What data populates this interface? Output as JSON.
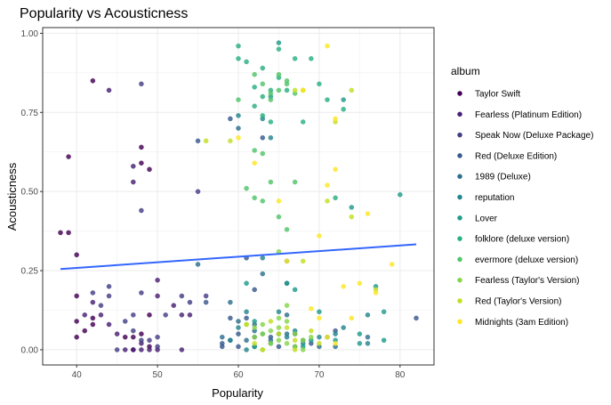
{
  "chart_data": {
    "type": "scatter",
    "title": "Popularity vs Acousticness",
    "xlabel": "Popularity",
    "ylabel": "Acousticness",
    "xlim": [
      35.8,
      84.2
    ],
    "ylim": [
      -0.048,
      1.018
    ],
    "x_ticks": [
      40,
      50,
      60,
      70,
      80
    ],
    "y_ticks": [
      0.0,
      0.25,
      0.5,
      0.75,
      1.0
    ],
    "y_tick_labels": [
      "0.00",
      "0.25",
      "0.50",
      "0.75",
      "1.00"
    ],
    "grid": true,
    "legend": {
      "title": "album",
      "position": "right"
    },
    "trend_line": {
      "x": [
        38,
        82
      ],
      "y": [
        0.255,
        0.333
      ],
      "color": "#3366ff"
    },
    "series": [
      {
        "name": "Taylor Swift",
        "color": "#440154",
        "points": [
          [
            38,
            0.37
          ],
          [
            39,
            0.37
          ],
          [
            39,
            0.61
          ],
          [
            40,
            0.3
          ],
          [
            40,
            0.17
          ],
          [
            40,
            0.09
          ],
          [
            40,
            0.04
          ],
          [
            41,
            0.06
          ],
          [
            42,
            0.08
          ],
          [
            42,
            0.1
          ],
          [
            42,
            0.85
          ],
          [
            46,
            0.04
          ],
          [
            47,
            0.0
          ],
          [
            47,
            0.04
          ],
          [
            48,
            0.05
          ],
          [
            48,
            0.59
          ],
          [
            48,
            0.64
          ],
          [
            49,
            0.01
          ],
          [
            49,
            0.11
          ],
          [
            49,
            0.57
          ]
        ]
      },
      {
        "name": "Fearless (Platinum Edition)",
        "color": "#482173",
        "points": [
          [
            41,
            0.11
          ],
          [
            42,
            0.15
          ],
          [
            43,
            0.11
          ],
          [
            44,
            0.08
          ],
          [
            44,
            0.82
          ],
          [
            45,
            0.05
          ],
          [
            46,
            0.0
          ],
          [
            47,
            0.0
          ],
          [
            47,
            0.53
          ],
          [
            47,
            0.58
          ],
          [
            48,
            0.02
          ],
          [
            48,
            0.0
          ],
          [
            49,
            0.0
          ],
          [
            50,
            0.0
          ],
          [
            50,
            0.22
          ],
          [
            50,
            0.17
          ],
          [
            53,
            0.11
          ],
          [
            52,
            0.14
          ],
          [
            53,
            0.0
          ],
          [
            54,
            0.11
          ]
        ]
      },
      {
        "name": "Speak Now (Deluxe Package)",
        "color": "#433e85",
        "points": [
          [
            42,
            0.18
          ],
          [
            43,
            0.14
          ],
          [
            44,
            0.2
          ],
          [
            44,
            0.17
          ],
          [
            45,
            0.0
          ],
          [
            46,
            0.09
          ],
          [
            47,
            0.11
          ],
          [
            47,
            0.06
          ],
          [
            48,
            0.18
          ],
          [
            48,
            0.44
          ],
          [
            48,
            0.84
          ],
          [
            48,
            0.03
          ],
          [
            49,
            0.03
          ],
          [
            50,
            0.04
          ],
          [
            50,
            0.01
          ],
          [
            51,
            0.11
          ],
          [
            53,
            0.17
          ],
          [
            54,
            0.15
          ],
          [
            55,
            0.5
          ],
          [
            56,
            0.17
          ]
        ]
      },
      {
        "name": "Red (Deluxe Edition)",
        "color": "#38598c",
        "points": [
          [
            55,
            0.66
          ],
          [
            56,
            0.15
          ],
          [
            58,
            0.02
          ],
          [
            58,
            0.01
          ],
          [
            59,
            0.73
          ],
          [
            59,
            0.1
          ],
          [
            60,
            0.01
          ],
          [
            60,
            0.05
          ],
          [
            61,
            0.29
          ],
          [
            61,
            0.1
          ],
          [
            62,
            0.19
          ],
          [
            62,
            0.04
          ],
          [
            63,
            0.67
          ],
          [
            64,
            0.04
          ],
          [
            65,
            0.01
          ],
          [
            66,
            0.21
          ],
          [
            67,
            0.05
          ],
          [
            69,
            0.02
          ],
          [
            72,
            0.06
          ],
          [
            82,
            0.1
          ]
        ]
      },
      {
        "name": "1989 (Deluxe)",
        "color": "#2d708e",
        "points": [
          [
            55,
            0.27
          ],
          [
            58,
            0.04
          ],
          [
            59,
            0.03
          ],
          [
            59,
            0.15
          ],
          [
            60,
            0.7
          ],
          [
            60,
            0.09
          ],
          [
            61,
            0.03
          ],
          [
            62,
            0.06
          ],
          [
            62,
            0.08
          ],
          [
            63,
            0.24
          ],
          [
            64,
            0.03
          ],
          [
            65,
            0.05
          ],
          [
            66,
            0.11
          ],
          [
            66,
            0.05
          ],
          [
            67,
            0.01
          ],
          [
            68,
            0.03
          ],
          [
            70,
            0.01
          ],
          [
            71,
            0.04
          ],
          [
            72,
            0.01
          ],
          [
            76,
            0.04
          ]
        ]
      },
      {
        "name": "reputation",
        "color": "#25858e",
        "points": [
          [
            59,
            0.03
          ],
          [
            60,
            0.07
          ],
          [
            60,
            0.74
          ],
          [
            61,
            0.0
          ],
          [
            61,
            0.12
          ],
          [
            62,
            0.01
          ],
          [
            63,
            0.29
          ],
          [
            63,
            0.73
          ],
          [
            64,
            0.02
          ],
          [
            64,
            0.67
          ],
          [
            65,
            0.12
          ],
          [
            66,
            0.04
          ],
          [
            66,
            0.28
          ],
          [
            67,
            0.06
          ],
          [
            68,
            0.02
          ],
          [
            70,
            0.04
          ],
          [
            72,
            0.05
          ],
          [
            73,
            0.07
          ],
          [
            76,
            0.11
          ],
          [
            76,
            0.02
          ]
        ]
      },
      {
        "name": "Lover",
        "color": "#1e9b8a",
        "points": [
          [
            61,
            0.21
          ],
          [
            62,
            0.01
          ],
          [
            62,
            0.09
          ],
          [
            63,
            0.05
          ],
          [
            64,
            0.8
          ],
          [
            65,
            0.97
          ],
          [
            66,
            0.21
          ],
          [
            67,
            0.19
          ],
          [
            68,
            0.01
          ],
          [
            69,
            0.03
          ],
          [
            70,
            0.12
          ],
          [
            72,
            0.03
          ],
          [
            73,
            0.79
          ],
          [
            74,
            0.45
          ],
          [
            75,
            0.05
          ],
          [
            75,
            0.02
          ],
          [
            77,
            0.2
          ],
          [
            78,
            0.03
          ],
          [
            80,
            0.49
          ],
          [
            78,
            0.12
          ]
        ]
      },
      {
        "name": "folklore (deluxe version)",
        "color": "#2ab07f",
        "points": [
          [
            60,
            0.96
          ],
          [
            60,
            0.92
          ],
          [
            61,
            0.91
          ],
          [
            62,
            0.77
          ],
          [
            62,
            0.83
          ],
          [
            63,
            0.89
          ],
          [
            63,
            0.8
          ],
          [
            64,
            0.72
          ],
          [
            64,
            0.82
          ],
          [
            65,
            0.86
          ],
          [
            65,
            0.95
          ],
          [
            66,
            0.82
          ],
          [
            67,
            0.92
          ],
          [
            68,
            0.72
          ],
          [
            69,
            0.92
          ],
          [
            70,
            0.84
          ],
          [
            71,
            0.79
          ],
          [
            72,
            0.48
          ],
          [
            73,
            0.76
          ],
          [
            63,
            0.74
          ]
        ]
      },
      {
        "name": "evermore (deluxe version)",
        "color": "#52c569",
        "points": [
          [
            60,
            0.79
          ],
          [
            61,
            0.51
          ],
          [
            62,
            0.87
          ],
          [
            62,
            0.48
          ],
          [
            63,
            0.84
          ],
          [
            63,
            0.47
          ],
          [
            64,
            0.79
          ],
          [
            64,
            0.81
          ],
          [
            65,
            0.42
          ],
          [
            65,
            0.87
          ],
          [
            66,
            0.84
          ],
          [
            66,
            0.38
          ],
          [
            67,
            0.53
          ],
          [
            67,
            0.81
          ],
          [
            68,
            0.82
          ],
          [
            66,
            0.85
          ],
          [
            65,
            0.82
          ],
          [
            64,
            0.53
          ],
          [
            62,
            0.63
          ],
          [
            63,
            0.62
          ]
        ]
      },
      {
        "name": "Fearless (Taylor's Version)",
        "color": "#86d549",
        "points": [
          [
            61,
            0.08
          ],
          [
            62,
            0.07
          ],
          [
            62,
            0.04
          ],
          [
            63,
            0.05
          ],
          [
            63,
            0.08
          ],
          [
            64,
            0.06
          ],
          [
            64,
            0.02
          ],
          [
            65,
            0.07
          ],
          [
            65,
            0.03
          ],
          [
            66,
            0.02
          ],
          [
            66,
            0.09
          ],
          [
            67,
            0.01
          ],
          [
            67,
            0.05
          ],
          [
            68,
            0.03
          ],
          [
            68,
            0.0
          ],
          [
            69,
            0.04
          ],
          [
            66,
            0.14
          ],
          [
            65,
            0.31
          ],
          [
            65,
            0.1
          ],
          [
            63,
            0.0
          ]
        ]
      },
      {
        "name": "Red (Taylor's Version)",
        "color": "#c2df23",
        "points": [
          [
            56,
            0.66
          ],
          [
            59,
            0.66
          ],
          [
            61,
            0.08
          ],
          [
            62,
            0.02
          ],
          [
            63,
            0.0
          ],
          [
            64,
            0.09
          ],
          [
            65,
            0.05
          ],
          [
            66,
            0.07
          ],
          [
            67,
            0.0
          ],
          [
            67,
            0.82
          ],
          [
            68,
            0.28
          ],
          [
            68,
            0.82
          ],
          [
            69,
            0.06
          ],
          [
            70,
            0.02
          ],
          [
            71,
            0.47
          ],
          [
            72,
            0.72
          ],
          [
            74,
            0.42
          ],
          [
            74,
            0.82
          ],
          [
            77,
            0.19
          ],
          [
            67,
            0.03
          ]
        ]
      },
      {
        "name": "Midnights (3am Edition)",
        "color": "#fde725",
        "points": [
          [
            60,
            0.67
          ],
          [
            62,
            0.59
          ],
          [
            65,
            0.47
          ],
          [
            66,
            0.28
          ],
          [
            68,
            0.82
          ],
          [
            70,
            0.36
          ],
          [
            71,
            0.96
          ],
          [
            71,
            0.52
          ],
          [
            72,
            0.73
          ],
          [
            72,
            0.57
          ],
          [
            73,
            0.2
          ],
          [
            74,
            0.1
          ],
          [
            75,
            0.21
          ],
          [
            76,
            0.43
          ],
          [
            77,
            0.18
          ],
          [
            79,
            0.27
          ],
          [
            71,
            0.04
          ],
          [
            70,
            0.1
          ],
          [
            69,
            0.13
          ],
          [
            72,
            0.02
          ]
        ]
      }
    ]
  }
}
